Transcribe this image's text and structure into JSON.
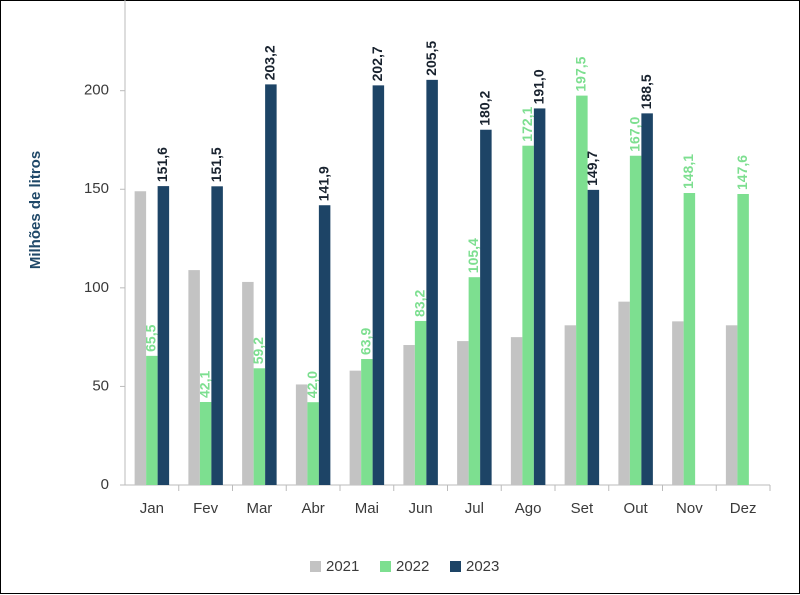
{
  "chart_data": {
    "type": "bar",
    "y_label": "Milhões de litros",
    "categories": [
      "Jan",
      "Fev",
      "Mar",
      "Abr",
      "Mai",
      "Jun",
      "Jul",
      "Ago",
      "Set",
      "Out",
      "Nov",
      "Dez"
    ],
    "series": [
      {
        "name": "2021",
        "color": "#c3c3c3",
        "values": [
          149,
          109,
          103,
          51,
          58,
          71,
          73,
          75,
          81,
          93,
          83,
          81
        ]
      },
      {
        "name": "2022",
        "color": "#7ddf90",
        "label_color": "#7ddf90",
        "values": [
          65.5,
          42.1,
          59.2,
          42.0,
          63.9,
          83.2,
          105.4,
          172.1,
          197.5,
          167.0,
          148.1,
          147.6
        ],
        "value_labels": [
          "65,5",
          "42,1",
          "59,2",
          "42,0",
          "63,9",
          "83,2",
          "105,4",
          "172,1",
          "197,5",
          "167,0",
          "148,1",
          "147,6"
        ]
      },
      {
        "name": "2023",
        "color": "#1d4466",
        "label_color": "#18222e",
        "values": [
          151.6,
          151.5,
          203.2,
          141.9,
          202.7,
          205.5,
          180.2,
          191.0,
          149.7,
          188.5,
          null,
          null
        ],
        "value_labels": [
          "151,6",
          "151,5",
          "203,2",
          "141,9",
          "202,7",
          "205,5",
          "180,2",
          "191,0",
          "149,7",
          "188,5",
          null,
          null
        ]
      }
    ],
    "ylim": [
      0,
      246
    ],
    "yticks": [
      0,
      50,
      100,
      150,
      200
    ],
    "grid": false,
    "legend": "bottom"
  }
}
